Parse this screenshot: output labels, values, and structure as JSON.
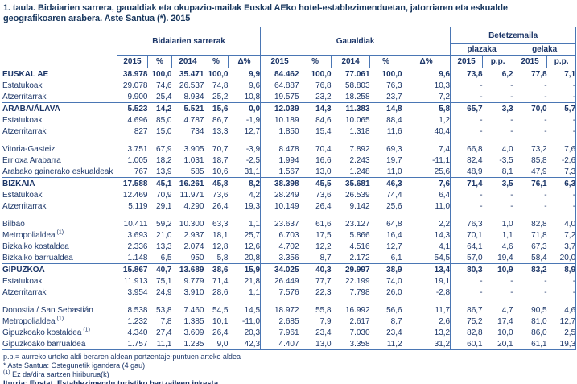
{
  "title": "1. taula. Bidaiarien sarrera, gaualdiak eta okupazio-mailak Euskal AEko hotel-establezimenduetan, jatorriaren eta eskualde geografikoaren arabera. Aste Santua (*). 2015",
  "colors": {
    "text": "#1c3668",
    "border": "#4a76b4"
  },
  "table": {
    "groups": [
      {
        "label": "Bidaiarien sarrerak"
      },
      {
        "label": "Gaualdiak"
      },
      {
        "label": "Betetzemaila",
        "subgroups": [
          {
            "label": "plazaka"
          },
          {
            "label": "gelaka"
          }
        ]
      }
    ],
    "year_header": [
      "2015",
      "%",
      "2014",
      "%",
      "Δ%",
      "2015",
      "%",
      "2014",
      "%",
      "Δ%",
      "2015",
      "p.p.",
      "2015",
      "p.p."
    ],
    "rows": [
      {
        "label": "EUSKAL AE",
        "bold": true,
        "values": [
          "38.978",
          "100,0",
          "35.471",
          "100,0",
          "9,9",
          "84.462",
          "100,0",
          "77.061",
          "100,0",
          "9,6",
          "73,8",
          "6,2",
          "77,8",
          "7,1"
        ]
      },
      {
        "label": "Estatukoak",
        "values": [
          "29.078",
          "74,6",
          "26.537",
          "74,8",
          "9,6",
          "64.887",
          "76,8",
          "58.803",
          "76,3",
          "10,3",
          "-",
          "-",
          "-",
          "-"
        ]
      },
      {
        "label": "Atzerritarrak",
        "section_end": true,
        "values": [
          "9.900",
          "25,4",
          "8.934",
          "25,2",
          "10,8",
          "19.575",
          "23,2",
          "18.258",
          "23,7",
          "7,2",
          "-",
          "-",
          "-",
          "-"
        ]
      },
      {
        "label": "ARABA/ÁLAVA",
        "bold": true,
        "values": [
          "5.523",
          "14,2",
          "5.521",
          "15,6",
          "0,0",
          "12.039",
          "14,3",
          "11.383",
          "14,8",
          "5,8",
          "65,7",
          "3,3",
          "70,0",
          "5,7"
        ]
      },
      {
        "label": "Estatukoak",
        "values": [
          "4.696",
          "85,0",
          "4.787",
          "86,7",
          "-1,9",
          "10.189",
          "84,6",
          "10.065",
          "88,4",
          "1,2",
          "-",
          "-",
          "-",
          "-"
        ]
      },
      {
        "label": "Atzerritarrak",
        "values": [
          "827",
          "15,0",
          "734",
          "13,3",
          "12,7",
          "1.850",
          "15,4",
          "1.318",
          "11,6",
          "40,4",
          "-",
          "-",
          "-",
          "-"
        ]
      },
      {
        "label": "Vitoria-Gasteiz",
        "gap_before": true,
        "values": [
          "3.751",
          "67,9",
          "3.905",
          "70,7",
          "-3,9",
          "8.478",
          "70,4",
          "7.892",
          "69,3",
          "7,4",
          "66,8",
          "4,0",
          "73,2",
          "7,6"
        ]
      },
      {
        "label": "Errioxa Arabarra",
        "values": [
          "1.005",
          "18,2",
          "1.031",
          "18,7",
          "-2,5",
          "1.994",
          "16,6",
          "2.243",
          "19,7",
          "-11,1",
          "82,4",
          "-3,5",
          "85,8",
          "-2,6"
        ]
      },
      {
        "label": "Arabako gainerako eskualdeak",
        "section_end": true,
        "values": [
          "767",
          "13,9",
          "585",
          "10,6",
          "31,1",
          "1.567",
          "13,0",
          "1.248",
          "11,0",
          "25,6",
          "48,9",
          "8,1",
          "47,9",
          "7,3"
        ]
      },
      {
        "label": "BIZKAIA",
        "bold": true,
        "values": [
          "17.588",
          "45,1",
          "16.261",
          "45,8",
          "8,2",
          "38.398",
          "45,5",
          "35.681",
          "46,3",
          "7,6",
          "71,4",
          "3,5",
          "76,1",
          "6,3"
        ]
      },
      {
        "label": "Estatukoak",
        "values": [
          "12.469",
          "70,9",
          "11.971",
          "73,6",
          "4,2",
          "28.249",
          "73,6",
          "26.539",
          "74,4",
          "6,4",
          "-",
          "-",
          "-",
          "-"
        ]
      },
      {
        "label": "Atzerritarrak",
        "values": [
          "5.119",
          "29,1",
          "4.290",
          "26,4",
          "19,3",
          "10.149",
          "26,4",
          "9.142",
          "25,6",
          "11,0",
          "-",
          "-",
          "-",
          "-"
        ]
      },
      {
        "label": "Bilbao",
        "gap_before": true,
        "values": [
          "10.411",
          "59,2",
          "10.300",
          "63,3",
          "1,1",
          "23.637",
          "61,6",
          "23.127",
          "64,8",
          "2,2",
          "76,3",
          "1,0",
          "82,8",
          "4,0"
        ]
      },
      {
        "label": "Metropolialdea",
        "sup": "(1)",
        "values": [
          "3.693",
          "21,0",
          "2.937",
          "18,1",
          "25,7",
          "6.703",
          "17,5",
          "5.866",
          "16,4",
          "14,3",
          "70,1",
          "1,1",
          "71,8",
          "7,2"
        ]
      },
      {
        "label": "Bizkaiko kostaldea",
        "values": [
          "2.336",
          "13,3",
          "2.074",
          "12,8",
          "12,6",
          "4.702",
          "12,2",
          "4.516",
          "12,7",
          "4,1",
          "64,1",
          "4,6",
          "67,3",
          "3,7"
        ]
      },
      {
        "label": "Bizkaiko barrualdea",
        "section_end": true,
        "values": [
          "1.148",
          "6,5",
          "950",
          "5,8",
          "20,8",
          "3.356",
          "8,7",
          "2.172",
          "6,1",
          "54,5",
          "57,0",
          "19,4",
          "58,4",
          "20,0"
        ]
      },
      {
        "label": "GIPUZKOA",
        "bold": true,
        "values": [
          "15.867",
          "40,7",
          "13.689",
          "38,6",
          "15,9",
          "34.025",
          "40,3",
          "29.997",
          "38,9",
          "13,4",
          "80,3",
          "10,9",
          "83,2",
          "8,9"
        ]
      },
      {
        "label": "Estatukoak",
        "values": [
          "11.913",
          "75,1",
          "9.779",
          "71,4",
          "21,8",
          "26.449",
          "77,7",
          "22.199",
          "74,0",
          "19,1",
          "-",
          "-",
          "-",
          "-"
        ]
      },
      {
        "label": "Atzerritarrak",
        "values": [
          "3.954",
          "24,9",
          "3.910",
          "28,6",
          "1,1",
          "7.576",
          "22,3",
          "7.798",
          "26,0",
          "-2,8",
          "-",
          "-",
          "-",
          "-"
        ]
      },
      {
        "label": "Donostia / San Sebastián",
        "gap_before": true,
        "values": [
          "8.538",
          "53,8",
          "7.460",
          "54,5",
          "14,5",
          "18.972",
          "55,8",
          "16.992",
          "56,6",
          "11,7",
          "86,7",
          "4,7",
          "90,5",
          "4,6"
        ]
      },
      {
        "label": "Metropolialdea",
        "sup": "(1)",
        "values": [
          "1.232",
          "7,8",
          "1.385",
          "10,1",
          "-11,0",
          "2.685",
          "7,9",
          "2.617",
          "8,7",
          "2,6",
          "75,2",
          "17,4",
          "81,0",
          "12,7"
        ]
      },
      {
        "label": "Gipuzkoako kostaldea",
        "sup": "(1)",
        "values": [
          "4.340",
          "27,4",
          "3.609",
          "26,4",
          "20,3",
          "7.961",
          "23,4",
          "7.030",
          "23,4",
          "13,2",
          "82,8",
          "10,0",
          "86,0",
          "2,5"
        ]
      },
      {
        "label": "Gipuzkoako barrualdea",
        "section_end": true,
        "values": [
          "1.757",
          "11,1",
          "1.235",
          "9,0",
          "42,3",
          "4.407",
          "13,0",
          "3.358",
          "11,2",
          "31,2",
          "60,1",
          "20,1",
          "61,1",
          "19,3"
        ]
      }
    ]
  },
  "footnotes": [
    {
      "text": "p.p.= aurreko urteko aldi beraren aldean portzentaje-puntuen arteko aldea"
    },
    {
      "text": "* Aste Santua: Ostegunetik igandera (4 gau)"
    },
    {
      "sup": "(1)",
      "text": " Ez da/dira sartzen hiriburua(k)"
    },
    {
      "text": "Iturria: Eustat. Establezimendu turistiko hartzaileen inkesta",
      "bold": true
    }
  ]
}
